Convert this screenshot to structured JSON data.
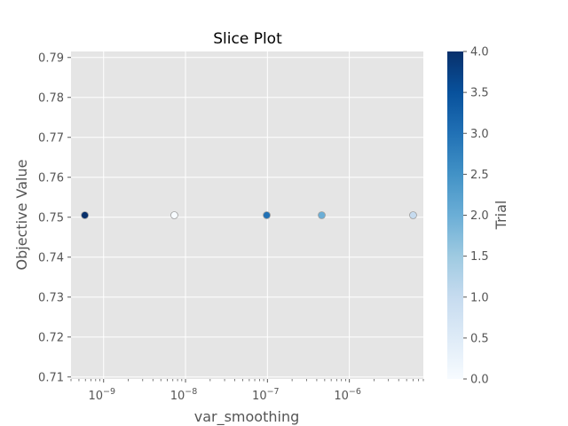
{
  "chart_data": {
    "type": "scatter",
    "title": "Slice Plot",
    "xlabel": "var_smoothing",
    "ylabel": "Objective Value",
    "xscale": "log",
    "xlim": [
      4e-10,
      8e-06
    ],
    "ylim": [
      0.7095,
      0.7915
    ],
    "x_ticks": [
      {
        "value": 1e-09,
        "base": "10",
        "exp": "−9"
      },
      {
        "value": 1e-08,
        "base": "10",
        "exp": "−8"
      },
      {
        "value": 1e-07,
        "base": "10",
        "exp": "−7"
      },
      {
        "value": 1e-06,
        "base": "10",
        "exp": "−6"
      }
    ],
    "y_ticks": [
      "0.71",
      "0.72",
      "0.73",
      "0.74",
      "0.75",
      "0.76",
      "0.77",
      "0.78",
      "0.79"
    ],
    "grid": true,
    "background": "#e5e5e5",
    "points": [
      {
        "trial": 0,
        "x": 7.3e-09,
        "y": 0.7505
      },
      {
        "trial": 1,
        "x": 6e-06,
        "y": 0.7505
      },
      {
        "trial": 2,
        "x": 4.6e-07,
        "y": 0.7505
      },
      {
        "trial": 3,
        "x": 9.8e-08,
        "y": 0.7505
      },
      {
        "trial": 4,
        "x": 5.9e-10,
        "y": 0.7505
      }
    ],
    "colorbar": {
      "label": "Trial",
      "min": 0,
      "max": 4,
      "ticks": [
        "0.0",
        "0.5",
        "1.0",
        "1.5",
        "2.0",
        "2.5",
        "3.0",
        "3.5",
        "4.0"
      ],
      "colormap": "Blues",
      "stops": [
        "#f7fbff",
        "#deebf7",
        "#c6dbef",
        "#9ecae1",
        "#6baed6",
        "#4292c6",
        "#2171b5",
        "#08519c",
        "#08306b"
      ]
    }
  }
}
